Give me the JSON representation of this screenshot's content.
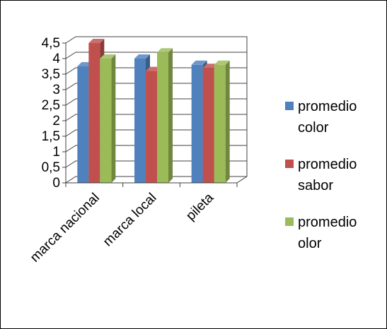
{
  "chart_data": {
    "type": "bar",
    "categories": [
      "marca nacional",
      "marca local",
      "pileta"
    ],
    "y_tick_labels": [
      "0",
      "0,5",
      "1",
      "1,5",
      "2",
      "2,5",
      "3",
      "3,5",
      "4",
      "4,5"
    ],
    "ylim": [
      0,
      4.5
    ],
    "grid": true,
    "legend_position": "right",
    "series": [
      {
        "name": "promedio color",
        "name_lines": [
          "promedio",
          "color"
        ],
        "color": "#4f81bd",
        "values": [
          3.75,
          4.0,
          3.8
        ]
      },
      {
        "name": "promedio sabor",
        "name_lines": [
          "promedio",
          "sabor"
        ],
        "color": "#c0504d",
        "values": [
          4.5,
          3.6,
          3.7
        ]
      },
      {
        "name": "promedio olor",
        "name_lines": [
          "promedio",
          "olor"
        ],
        "color": "#9bbb59",
        "values": [
          4.0,
          4.2,
          3.8
        ]
      }
    ]
  }
}
